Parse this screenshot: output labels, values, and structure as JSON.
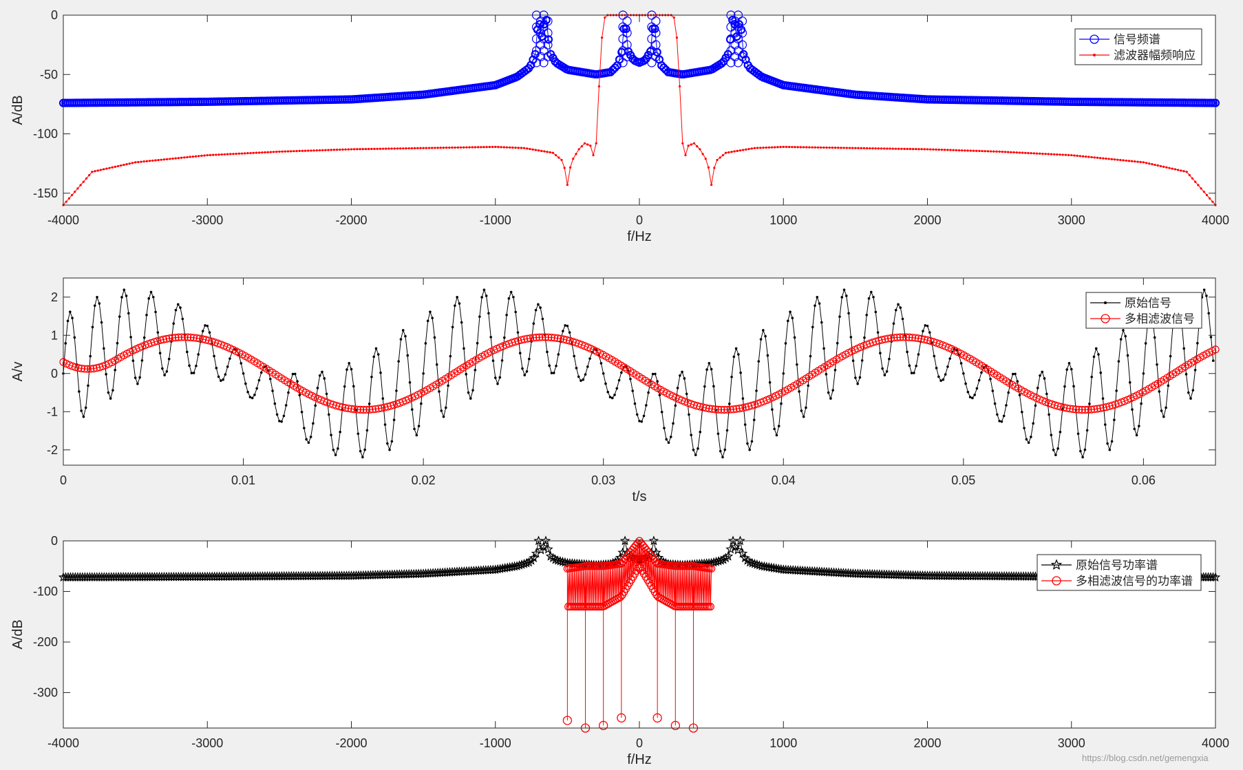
{
  "chart_data": [
    {
      "type": "line",
      "xlabel": "f/Hz",
      "ylabel": "A/dB",
      "xlim": [
        -4000,
        4000
      ],
      "ylim": [
        -160,
        0
      ],
      "xticks": [
        -4000,
        -3000,
        -2000,
        -1000,
        0,
        1000,
        2000,
        3000,
        4000
      ],
      "xtick_labels": [
        "-4000",
        "-3000",
        "-2000",
        "-1000",
        "0",
        "1000",
        "2000",
        "3000",
        "4000"
      ],
      "yticks": [
        0,
        -50,
        -100,
        -150
      ],
      "ytick_labels": [
        "0",
        "-50",
        "-100",
        "-150"
      ],
      "legend_position": "top-right",
      "series": [
        {
          "name": "信号频谱",
          "color": "#0000ff",
          "marker": "circle",
          "peaks_hz": [
            -700,
            -650,
            -100,
            100,
            650,
            700
          ],
          "floor_db": -74,
          "x": [
            -4000,
            -3000,
            -2000,
            -1500,
            -1000,
            -850,
            -760,
            -720,
            -700,
            -680,
            -650,
            -620,
            -580,
            -500,
            -400,
            -300,
            -200,
            -150,
            -120,
            -100,
            -80,
            -40,
            0,
            40,
            80,
            100,
            120,
            150,
            200,
            300,
            400,
            500,
            580,
            620,
            650,
            680,
            700,
            720,
            760,
            850,
            1000,
            1500,
            2000,
            3000,
            4000
          ],
          "y": [
            -74,
            -73,
            -71,
            -67,
            -59,
            -52,
            -44,
            -32,
            0,
            -20,
            0,
            -32,
            -40,
            -46,
            -48,
            -50,
            -48,
            -42,
            -30,
            0,
            -30,
            -38,
            -40,
            -38,
            -30,
            0,
            -30,
            -42,
            -48,
            -50,
            -48,
            -46,
            -40,
            -32,
            0,
            -20,
            0,
            -32,
            -44,
            -52,
            -59,
            -67,
            -71,
            -73,
            -74
          ]
        },
        {
          "name": "滤波器幅频响应",
          "color": "#ff0000",
          "marker": "dot",
          "x": [
            -4000,
            -3800,
            -3500,
            -3000,
            -2500,
            -2000,
            -1500,
            -1000,
            -800,
            -600,
            -540,
            -510,
            -500,
            -490,
            -460,
            -420,
            -380,
            -340,
            -320,
            -300,
            -290,
            -280,
            -270,
            -250,
            -240,
            -230,
            -200,
            0,
            200,
            230,
            240,
            250,
            270,
            280,
            290,
            300,
            320,
            340,
            380,
            420,
            460,
            490,
            500,
            510,
            540,
            600,
            800,
            1000,
            1500,
            2000,
            2500,
            3000,
            3500,
            3800,
            4000
          ],
          "y": [
            -160,
            -132,
            -124,
            -118,
            -115,
            -113,
            -112,
            -111,
            -112,
            -116,
            -122,
            -132,
            -143,
            -132,
            -121,
            -113,
            -108,
            -110,
            -118,
            -108,
            -90,
            -60,
            -30,
            -8,
            -2,
            0,
            0,
            0,
            0,
            0,
            -2,
            -8,
            -30,
            -60,
            -90,
            -108,
            -118,
            -110,
            -108,
            -113,
            -121,
            -132,
            -143,
            -132,
            -122,
            -116,
            -112,
            -111,
            -112,
            -113,
            -115,
            -118,
            -124,
            -132,
            -160
          ]
        }
      ]
    },
    {
      "type": "line",
      "xlabel": "t/s",
      "ylabel": "A/v",
      "xlim": [
        0,
        0.064
      ],
      "ylim": [
        -2.4,
        2.5
      ],
      "xticks": [
        0,
        0.01,
        0.02,
        0.03,
        0.04,
        0.05,
        0.06
      ],
      "xtick_labels": [
        "0",
        "0.01",
        "0.02",
        "0.03",
        "0.04",
        "0.05",
        "0.06"
      ],
      "yticks": [
        2,
        1,
        0,
        -1,
        -2
      ],
      "ytick_labels": [
        "2",
        "1",
        "0",
        "-1",
        "-2"
      ],
      "legend_position": "top-right",
      "series": [
        {
          "name": "原始信号",
          "color": "#000000",
          "marker": "dot",
          "model": "sin(2π·50t)+sin(2π·650t)+sin(2π·700t)",
          "samples": 512,
          "t_start": 0,
          "t_end": 0.064
        },
        {
          "name": "多相滤波信号",
          "color": "#ff0000",
          "marker": "circle",
          "model": "0.95·sin(2π·50(t−0.0017))+0.3 at start",
          "samples": 380,
          "t_start": 0,
          "t_end": 0.064
        }
      ]
    },
    {
      "type": "line",
      "xlabel": "f/Hz",
      "ylabel": "A/dB",
      "xlim": [
        -4000,
        4000
      ],
      "ylim": [
        -370,
        0
      ],
      "xticks": [
        -4000,
        -3000,
        -2000,
        -1000,
        0,
        1000,
        2000,
        3000,
        4000
      ],
      "xtick_labels": [
        "-4000",
        "-3000",
        "-2000",
        "-1000",
        "0",
        "1000",
        "2000",
        "3000",
        "4000"
      ],
      "yticks": [
        0,
        -100,
        -200,
        -300
      ],
      "ytick_labels": [
        "0",
        "-100",
        "-200",
        "-300"
      ],
      "legend_position": "top-right",
      "series": [
        {
          "name": "原始信号功率谱",
          "color": "#000000",
          "marker": "star",
          "x": [
            -4000,
            -3000,
            -2000,
            -1500,
            -1000,
            -850,
            -760,
            -720,
            -700,
            -680,
            -650,
            -620,
            -580,
            -500,
            -400,
            -300,
            -200,
            -150,
            -120,
            -100,
            -80,
            -40,
            0,
            40,
            80,
            100,
            120,
            150,
            200,
            300,
            400,
            500,
            580,
            620,
            650,
            680,
            700,
            720,
            760,
            850,
            1000,
            1500,
            2000,
            3000,
            4000
          ],
          "y": [
            -72,
            -71,
            -69,
            -65,
            -57,
            -50,
            -42,
            -30,
            0,
            -22,
            0,
            -30,
            -38,
            -44,
            -46,
            -48,
            -46,
            -40,
            -28,
            0,
            -28,
            -36,
            -38,
            -36,
            -28,
            0,
            -28,
            -40,
            -46,
            -48,
            -46,
            -44,
            -38,
            -30,
            0,
            -22,
            0,
            -30,
            -42,
            -50,
            -57,
            -65,
            -69,
            -71,
            -72
          ]
        },
        {
          "name": "多相滤波信号的功率谱",
          "color": "#ff0000",
          "marker": "circle",
          "x": [
            -500,
            -375,
            -250,
            -125,
            0,
            125,
            250,
            375,
            500
          ],
          "band": [
            -500,
            500
          ],
          "upper_db": [
            -55,
            -50,
            -50,
            -45,
            0,
            -45,
            -50,
            -50,
            -55
          ],
          "lower_db": [
            -130,
            -130,
            -130,
            -110,
            -50,
            -110,
            -130,
            -130,
            -130
          ],
          "dip_x": [
            -500,
            -375,
            -250,
            -125,
            125,
            250,
            375
          ],
          "dip_y": [
            -355,
            -370,
            -365,
            -350,
            -350,
            -365,
            -370
          ]
        }
      ]
    }
  ],
  "watermark": "https://blog.csdn.net/gemengxia"
}
